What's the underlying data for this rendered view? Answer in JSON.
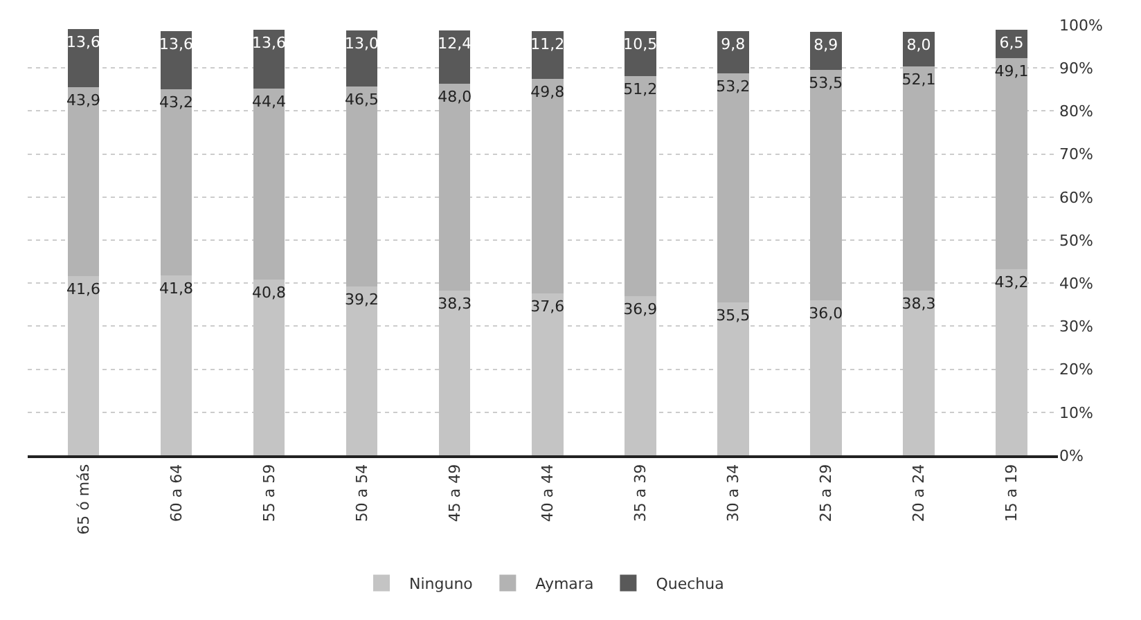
{
  "chart_data": {
    "type": "bar",
    "stacked": true,
    "categories": [
      "65 ó más",
      "60 a 64",
      "55 a 59",
      "50 a 54",
      "45 a 49",
      "40 a 44",
      "35 a 39",
      "30 a 34",
      "25 a 29",
      "20 a 24",
      "15 a 19"
    ],
    "series": [
      {
        "name": "Ninguno",
        "color": "#c4c4c4",
        "values": [
          41.6,
          41.8,
          40.8,
          39.2,
          38.3,
          37.6,
          36.9,
          35.5,
          36.0,
          38.3,
          43.2
        ],
        "value_labels": [
          "41,6",
          "41,8",
          "40,8",
          "39,2",
          "38,3",
          "37,6",
          "36,9",
          "35,5",
          "36,0",
          "38,3",
          "43,2"
        ]
      },
      {
        "name": "Aymara",
        "color": "#b3b3b3",
        "values": [
          43.9,
          43.2,
          44.4,
          46.5,
          48.0,
          49.8,
          51.2,
          53.2,
          53.5,
          52.1,
          49.1
        ],
        "value_labels": [
          "43,9",
          "43,2",
          "44,4",
          "46,5",
          "48,0",
          "49,8",
          "51,2",
          "53,2",
          "53,5",
          "52,1",
          "49,1"
        ]
      },
      {
        "name": "Quechua",
        "color": "#595959",
        "values": [
          13.6,
          13.6,
          13.6,
          13.0,
          12.4,
          11.2,
          10.5,
          9.8,
          8.9,
          8.0,
          6.5
        ],
        "value_labels": [
          "13,6",
          "13,6",
          "13,6",
          "13,0",
          "12,4",
          "11,2",
          "10,5",
          "9,8",
          "8,9",
          "8,0",
          "6,5"
        ]
      }
    ],
    "ylim": [
      0,
      100
    ],
    "yticks": [
      {
        "value": 0,
        "label": "0%"
      },
      {
        "value": 10,
        "label": "10%"
      },
      {
        "value": 20,
        "label": "20%"
      },
      {
        "value": 30,
        "label": "30%"
      },
      {
        "value": 40,
        "label": "40%"
      },
      {
        "value": 50,
        "label": "50%"
      },
      {
        "value": 60,
        "label": "60%"
      },
      {
        "value": 70,
        "label": "70%"
      },
      {
        "value": 80,
        "label": "80%"
      },
      {
        "value": 90,
        "label": "90%"
      },
      {
        "value": 100,
        "label": "100%"
      }
    ],
    "grid": "y",
    "legend": "bottom"
  }
}
